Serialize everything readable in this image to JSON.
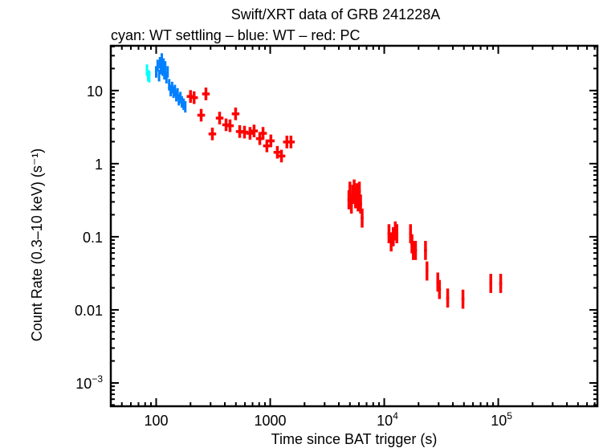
{
  "chart_data": {
    "type": "scatter",
    "title": "Swift/XRT data of GRB 241228A",
    "subtitle": "cyan: WT settling – blue: WT – red: PC",
    "xlabel": "Time since BAT trigger (s)",
    "ylabel": "Count Rate (0.3–10 keV) (s⁻¹)",
    "xscale": "log",
    "yscale": "log",
    "xlim": [
      40,
      740000
    ],
    "ylim": [
      0.00048,
      41
    ],
    "grid": false,
    "x_ticks": [
      {
        "value": 100,
        "label": "100"
      },
      {
        "value": 1000,
        "label": "1000"
      },
      {
        "value": 10000,
        "base": "10",
        "exp": "4"
      },
      {
        "value": 100000,
        "base": "10",
        "exp": "5"
      }
    ],
    "y_ticks": [
      {
        "value": 10,
        "label": "10"
      },
      {
        "value": 1,
        "label": "1"
      },
      {
        "value": 0.1,
        "label": "0.1"
      },
      {
        "value": 0.01,
        "label": "0.01"
      },
      {
        "value": 0.001,
        "base": "10",
        "exp": "−3"
      }
    ],
    "point_format": "[time, rate]",
    "series": [
      {
        "mode": "WT settling",
        "color": "#00ffff",
        "points": [
          [
            83,
            19
          ],
          [
            85,
            16
          ],
          [
            87,
            15.5
          ]
        ]
      },
      {
        "mode": "WT",
        "color": "#0080ff",
        "points": [
          [
            100,
            18
          ],
          [
            103,
            22
          ],
          [
            106,
            16
          ],
          [
            108,
            24
          ],
          [
            110,
            20
          ],
          [
            112,
            27
          ],
          [
            114,
            19
          ],
          [
            116,
            23
          ],
          [
            118,
            17
          ],
          [
            120,
            21
          ],
          [
            123,
            15
          ],
          [
            126,
            18
          ],
          [
            130,
            12
          ],
          [
            134,
            10
          ],
          [
            138,
            11
          ],
          [
            142,
            9.5
          ],
          [
            146,
            10
          ],
          [
            150,
            8.5
          ],
          [
            154,
            9
          ],
          [
            158,
            7.5
          ],
          [
            163,
            8
          ],
          [
            168,
            7
          ],
          [
            174,
            6.5
          ],
          [
            180,
            6
          ]
        ]
      },
      {
        "mode": "PC",
        "color": "#ff0000",
        "points": [
          [
            200,
            8.3
          ],
          [
            215,
            8.0
          ],
          [
            248,
            4.6
          ],
          [
            273,
            9.0
          ],
          [
            311,
            2.55
          ],
          [
            360,
            4.2
          ],
          [
            410,
            3.4
          ],
          [
            444,
            3.3
          ],
          [
            497,
            4.8
          ],
          [
            540,
            2.75
          ],
          [
            595,
            2.7
          ],
          [
            665,
            2.6
          ],
          [
            722,
            2.8
          ],
          [
            810,
            2.2
          ],
          [
            865,
            2.6
          ],
          [
            935,
            1.75
          ],
          [
            1013,
            2.05
          ],
          [
            1155,
            1.43
          ],
          [
            1255,
            1.27
          ],
          [
            1400,
            1.98
          ],
          [
            1520,
            1.98
          ],
          [
            4900,
            0.32
          ],
          [
            5000,
            0.42
          ],
          [
            5150,
            0.28
          ],
          [
            5300,
            0.38
          ],
          [
            5450,
            0.45
          ],
          [
            5600,
            0.33
          ],
          [
            5750,
            0.4
          ],
          [
            5900,
            0.3
          ],
          [
            6050,
            0.42
          ],
          [
            6200,
            0.28
          ],
          [
            6400,
            0.18
          ],
          [
            11000,
            0.11
          ],
          [
            11500,
            0.085
          ],
          [
            12000,
            0.1
          ],
          [
            12500,
            0.12
          ],
          [
            12900,
            0.11
          ],
          [
            17000,
            0.11
          ],
          [
            17500,
            0.08
          ],
          [
            18000,
            0.065
          ],
          [
            18800,
            0.065
          ],
          [
            23000,
            0.065
          ],
          [
            23700,
            0.034
          ],
          [
            29500,
            0.024
          ],
          [
            30500,
            0.019
          ],
          [
            36000,
            0.0145
          ],
          [
            49000,
            0.014
          ],
          [
            86000,
            0.023
          ],
          [
            105000,
            0.023
          ]
        ]
      }
    ]
  }
}
